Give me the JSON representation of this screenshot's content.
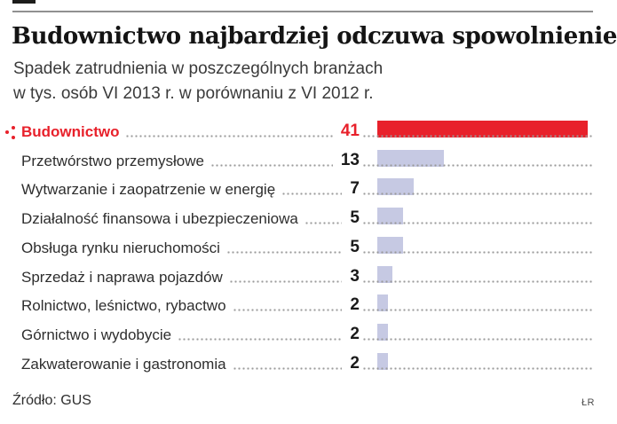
{
  "header": {
    "title": "Budownictwo najbardziej odczuwa spowolnienie",
    "subtitle_line1": "Spadek zatrudnienia w poszczególnych branżach",
    "subtitle_line2": "w tys. osób VI 2013 r. w porównaniu z VI 2012 r."
  },
  "chart_data": {
    "type": "bar",
    "orientation": "horizontal",
    "unit": "tys. osób",
    "categories": [
      "Budownictwo",
      "Przetwórstwo przemysłowe",
      "Wytwarzanie i zaopatrzenie w energię",
      "Działalność finansowa i ubezpieczeniowa",
      "Obsługa rynku nieruchomości",
      "Sprzedaż i naprawa pojazdów",
      "Rolnictwo, leśnictwo, rybactwo",
      "Górnictwo i wydobycie",
      "Zakwaterowanie i gastronomia"
    ],
    "values": [
      41,
      13,
      7,
      5,
      5,
      3,
      2,
      2,
      2
    ],
    "value_labels_shown": true,
    "highlight_index": 0,
    "xlim": [
      0,
      41
    ],
    "grid": "none",
    "legend": "none",
    "colors": {
      "highlight_bar": "#e8212b",
      "bar": "#c6c9e3",
      "highlight_label": "#e8212b",
      "label": "#2e2e2e",
      "value": "#1a1a1a",
      "leader_dots": "#9b9b9b"
    }
  },
  "footer": {
    "source": "Źródło: GUS",
    "credit": "ŁR"
  }
}
